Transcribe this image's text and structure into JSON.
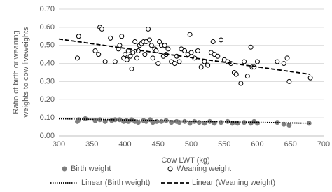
{
  "chart_data": {
    "type": "scatter",
    "xlabel": "Cow LWT (kg)",
    "ylabel": [
      "Ratio of birth or weaning",
      "weights to cow liveweights"
    ],
    "xlim": [
      300,
      700
    ],
    "xticks": [
      300,
      350,
      400,
      450,
      500,
      550,
      600,
      650,
      700
    ],
    "ylim": [
      0,
      0.7
    ],
    "yticks": [
      {
        "value": 0,
        "label": "0.00"
      },
      {
        "value": 0.1,
        "label": "0.10"
      },
      {
        "value": 0.2,
        "label": "0.20"
      },
      {
        "value": 0.3,
        "label": "0.30"
      },
      {
        "value": 0.4,
        "label": "0.40"
      },
      {
        "value": 0.5,
        "label": "0.50"
      },
      {
        "value": 0.6,
        "label": "0.60"
      },
      {
        "value": 0.7,
        "label": "0.70"
      }
    ],
    "grid": true,
    "legend": "bottom",
    "series": [
      {
        "name": "Birth weight",
        "color": "#7f7f7f",
        "filled": true,
        "x": [
          328,
          330,
          340,
          355,
          362,
          370,
          380,
          385,
          392,
          398,
          402,
          405,
          410,
          415,
          420,
          428,
          432,
          438,
          442,
          448,
          455,
          462,
          470,
          478,
          482,
          490,
          498,
          505,
          512,
          520,
          528,
          535,
          545,
          555,
          562,
          570,
          580,
          590,
          595,
          600,
          630,
          640,
          648,
          678
        ],
        "values": [
          0.08,
          0.09,
          0.095,
          0.085,
          0.09,
          0.08,
          0.085,
          0.09,
          0.09,
          0.08,
          0.085,
          0.08,
          0.09,
          0.08,
          0.075,
          0.085,
          0.08,
          0.09,
          0.075,
          0.08,
          0.08,
          0.085,
          0.075,
          0.08,
          0.075,
          0.08,
          0.07,
          0.08,
          0.075,
          0.07,
          0.08,
          0.07,
          0.075,
          0.08,
          0.07,
          0.07,
          0.075,
          0.07,
          0.08,
          0.07,
          0.075,
          0.065,
          0.06,
          0.07
        ]
      },
      {
        "name": "Weaning weight",
        "color": "#000000",
        "filled": false,
        "x": [
          328,
          330,
          355,
          360,
          362,
          365,
          370,
          378,
          385,
          390,
          392,
          395,
          398,
          400,
          403,
          405,
          408,
          410,
          412,
          415,
          418,
          420,
          422,
          425,
          428,
          430,
          432,
          435,
          437,
          440,
          442,
          445,
          447,
          450,
          452,
          455,
          458,
          460,
          462,
          465,
          470,
          475,
          478,
          482,
          485,
          490,
          495,
          498,
          500,
          505,
          510,
          515,
          520,
          525,
          530,
          533,
          535,
          540,
          545,
          550,
          555,
          560,
          565,
          568,
          575,
          580,
          585,
          590,
          592,
          595,
          600,
          630,
          640,
          645,
          648,
          680
        ],
        "values": [
          0.43,
          0.55,
          0.47,
          0.45,
          0.6,
          0.59,
          0.41,
          0.54,
          0.41,
          0.48,
          0.5,
          0.55,
          0.43,
          0.45,
          0.42,
          0.47,
          0.44,
          0.37,
          0.46,
          0.52,
          0.43,
          0.47,
          0.5,
          0.51,
          0.52,
          0.45,
          0.52,
          0.59,
          0.53,
          0.5,
          0.43,
          0.48,
          0.47,
          0.4,
          0.52,
          0.5,
          0.44,
          0.5,
          0.45,
          0.48,
          0.41,
          0.4,
          0.44,
          0.41,
          0.48,
          0.47,
          0.45,
          0.56,
          0.46,
          0.43,
          0.47,
          0.38,
          0.41,
          0.39,
          0.46,
          0.52,
          0.45,
          0.44,
          0.53,
          0.42,
          0.41,
          0.4,
          0.35,
          0.34,
          0.29,
          0.41,
          0.33,
          0.49,
          0.38,
          0.38,
          0.41,
          0.41,
          0.4,
          0.43,
          0.3,
          0.32
        ]
      }
    ],
    "trendlines": [
      {
        "name": "Linear (Birth weight)",
        "color": "#000000",
        "dash": "dotted",
        "x": [
          300,
          680
        ],
        "values": [
          0.095,
          0.07
        ]
      },
      {
        "name": "Linear (Weaning weight)",
        "color": "#000000",
        "dash": "dashed",
        "x": [
          300,
          680
        ],
        "values": [
          0.535,
          0.34
        ]
      }
    ]
  }
}
